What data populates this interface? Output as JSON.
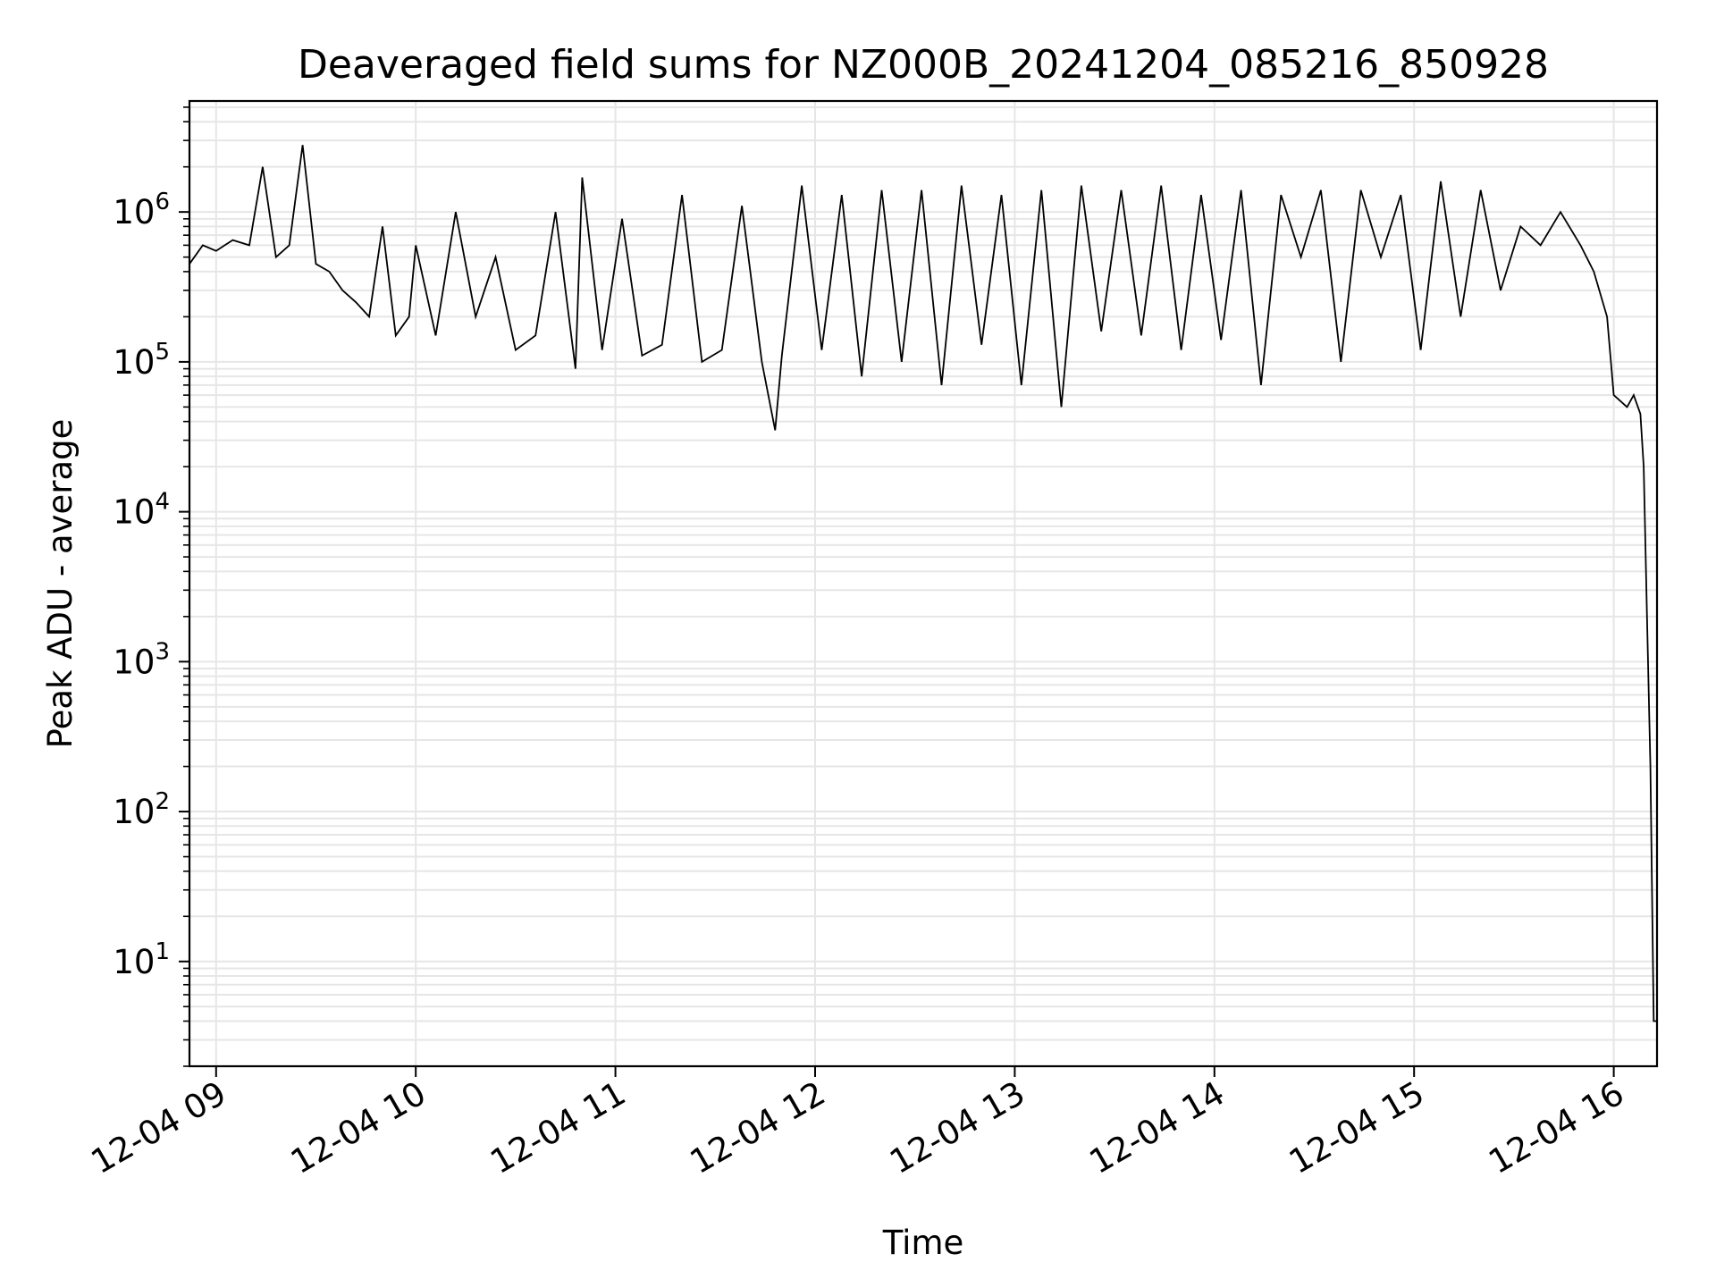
{
  "chart_data": {
    "type": "line",
    "title": "Deaveraged field sums for NZ000B_20241204_085216_850928",
    "xlabel": "Time",
    "ylabel": "Peak ADU - average",
    "yscale": "log",
    "xlim": [
      "2024-12-04 08:52",
      "2024-12-04 16:13"
    ],
    "ylim": [
      2,
      5500000
    ],
    "x_ticks": [
      {
        "value": "2024-12-04 09:00",
        "label": "12-04 09"
      },
      {
        "value": "2024-12-04 10:00",
        "label": "12-04 10"
      },
      {
        "value": "2024-12-04 11:00",
        "label": "12-04 11"
      },
      {
        "value": "2024-12-04 12:00",
        "label": "12-04 12"
      },
      {
        "value": "2024-12-04 13:00",
        "label": "12-04 13"
      },
      {
        "value": "2024-12-04 14:00",
        "label": "12-04 14"
      },
      {
        "value": "2024-12-04 15:00",
        "label": "12-04 15"
      },
      {
        "value": "2024-12-04 16:00",
        "label": "12-04 16"
      }
    ],
    "y_ticks": [
      {
        "value": 10,
        "base": "10",
        "exp": "1"
      },
      {
        "value": 100,
        "base": "10",
        "exp": "2"
      },
      {
        "value": 1000,
        "base": "10",
        "exp": "3"
      },
      {
        "value": 10000,
        "base": "10",
        "exp": "4"
      },
      {
        "value": 100000,
        "base": "10",
        "exp": "5"
      },
      {
        "value": 1000000,
        "base": "10",
        "exp": "6"
      }
    ],
    "grid": true,
    "line_color": "#000000",
    "grid_color": "#e6e6e6",
    "series": [
      {
        "x": [
          "2024-12-04 08:52",
          "2024-12-04 08:56",
          "2024-12-04 09:00",
          "2024-12-04 09:05",
          "2024-12-04 09:10",
          "2024-12-04 09:14",
          "2024-12-04 09:18",
          "2024-12-04 09:22",
          "2024-12-04 09:26",
          "2024-12-04 09:30",
          "2024-12-04 09:34",
          "2024-12-04 09:38",
          "2024-12-04 09:42",
          "2024-12-04 09:46",
          "2024-12-04 09:50",
          "2024-12-04 09:54",
          "2024-12-04 09:58",
          "2024-12-04 10:00",
          "2024-12-04 10:06",
          "2024-12-04 10:12",
          "2024-12-04 10:18",
          "2024-12-04 10:24",
          "2024-12-04 10:30",
          "2024-12-04 10:36",
          "2024-12-04 10:42",
          "2024-12-04 10:48",
          "2024-12-04 10:50",
          "2024-12-04 10:56",
          "2024-12-04 11:02",
          "2024-12-04 11:08",
          "2024-12-04 11:14",
          "2024-12-04 11:20",
          "2024-12-04 11:26",
          "2024-12-04 11:32",
          "2024-12-04 11:38",
          "2024-12-04 11:44",
          "2024-12-04 11:48",
          "2024-12-04 11:50",
          "2024-12-04 11:56",
          "2024-12-04 12:02",
          "2024-12-04 12:08",
          "2024-12-04 12:14",
          "2024-12-04 12:20",
          "2024-12-04 12:26",
          "2024-12-04 12:32",
          "2024-12-04 12:38",
          "2024-12-04 12:44",
          "2024-12-04 12:50",
          "2024-12-04 12:56",
          "2024-12-04 13:02",
          "2024-12-04 13:08",
          "2024-12-04 13:14",
          "2024-12-04 13:20",
          "2024-12-04 13:26",
          "2024-12-04 13:32",
          "2024-12-04 13:38",
          "2024-12-04 13:44",
          "2024-12-04 13:50",
          "2024-12-04 13:56",
          "2024-12-04 14:02",
          "2024-12-04 14:08",
          "2024-12-04 14:14",
          "2024-12-04 14:20",
          "2024-12-04 14:26",
          "2024-12-04 14:32",
          "2024-12-04 14:38",
          "2024-12-04 14:44",
          "2024-12-04 14:50",
          "2024-12-04 14:56",
          "2024-12-04 15:02",
          "2024-12-04 15:08",
          "2024-12-04 15:14",
          "2024-12-04 15:20",
          "2024-12-04 15:26",
          "2024-12-04 15:32",
          "2024-12-04 15:38",
          "2024-12-04 15:44",
          "2024-12-04 15:50",
          "2024-12-04 15:54",
          "2024-12-04 15:58",
          "2024-12-04 16:00",
          "2024-12-04 16:04",
          "2024-12-04 16:06",
          "2024-12-04 16:08",
          "2024-12-04 16:09",
          "2024-12-04 16:10",
          "2024-12-04 16:11",
          "2024-12-04 16:12",
          "2024-12-04 16:13"
        ],
        "y": [
          450000,
          600000,
          550000,
          650000,
          600000,
          2000000,
          500000,
          600000,
          2800000,
          450000,
          400000,
          300000,
          250000,
          200000,
          800000,
          150000,
          200000,
          600000,
          150000,
          1000000,
          200000,
          500000,
          120000,
          150000,
          1000000,
          90000,
          1700000,
          120000,
          900000,
          110000,
          130000,
          1300000,
          100000,
          120000,
          1100000,
          100000,
          35000,
          110000,
          1500000,
          120000,
          1300000,
          80000,
          1400000,
          100000,
          1400000,
          70000,
          1500000,
          130000,
          1300000,
          70000,
          1400000,
          50000,
          1500000,
          160000,
          1400000,
          150000,
          1500000,
          120000,
          1300000,
          140000,
          1400000,
          70000,
          1300000,
          500000,
          1400000,
          100000,
          1400000,
          500000,
          1300000,
          120000,
          1600000,
          200000,
          1400000,
          300000,
          800000,
          600000,
          1000000,
          600000,
          400000,
          200000,
          60000,
          50000,
          60000,
          45000,
          20000,
          2000,
          200,
          4,
          4
        ]
      }
    ]
  }
}
